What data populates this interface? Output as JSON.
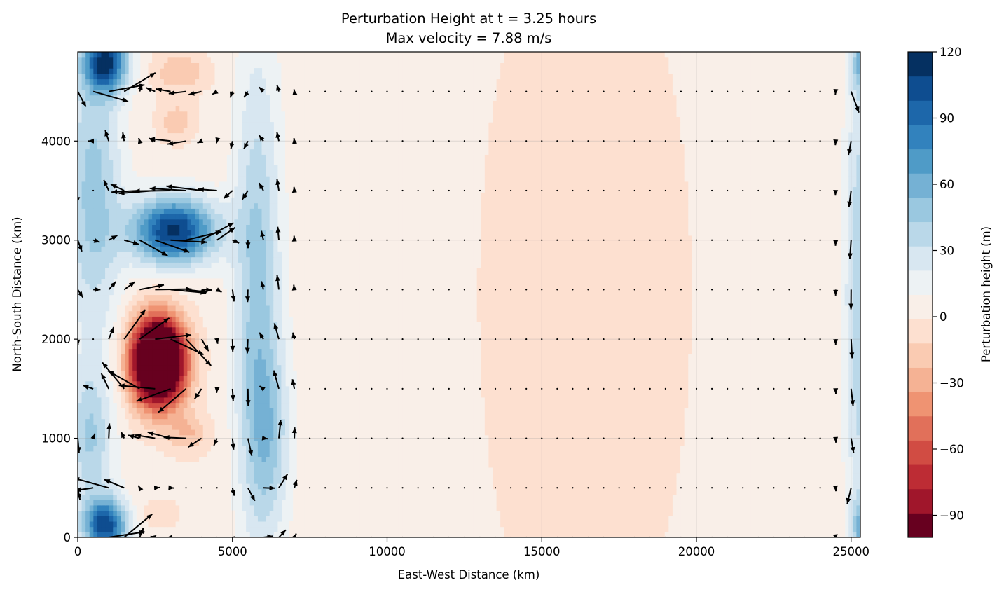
{
  "chart_data": {
    "type": "heatmap",
    "title": "Perturbation Height at t = 3.25 hours",
    "subtitle": "Max velocity = 7.88 m/s",
    "xlabel": "East-West Distance (km)",
    "ylabel": "North-South Distance (km)",
    "xlim": [
      0,
      25300
    ],
    "ylim": [
      0,
      4900
    ],
    "x_ticks": [
      0,
      5000,
      10000,
      15000,
      20000,
      25000
    ],
    "y_ticks": [
      0,
      1000,
      2000,
      3000,
      4000
    ],
    "grid": true,
    "colorbar": {
      "label": "Perturbation height (m)",
      "range": [
        -100,
        120
      ],
      "tick_values": [
        -90,
        -60,
        -30,
        0,
        30,
        60,
        90,
        120
      ],
      "tick_labels": [
        "−90",
        "−60",
        "−30",
        "0",
        "30",
        "60",
        "90",
        "120"
      ],
      "colors": [
        "#67001f",
        "#a0162b",
        "#bd2c34",
        "#d14c43",
        "#e1705a",
        "#ef9372",
        "#f5b294",
        "#facbb2",
        "#fde0d0",
        "#f9efe8",
        "#edf2f4",
        "#d8e7f1",
        "#bad8e9",
        "#9ac8e0",
        "#75b1d4",
        "#4f9bc7",
        "#3282bd",
        "#1d67aa",
        "#0e4d90",
        "#053061"
      ]
    },
    "colormap": "RdBu_r",
    "field_features": [
      {
        "kind": "high",
        "x": 3100,
        "y": 3100,
        "value": 110
      },
      {
        "kind": "high",
        "x": 900,
        "y": 4750,
        "value": 105
      },
      {
        "kind": "high",
        "x": 900,
        "y": 150,
        "value": 105
      },
      {
        "kind": "low",
        "x": 2600,
        "y": 1780,
        "value": -95
      },
      {
        "kind": "low",
        "x": 3300,
        "y": 4700,
        "value": -20
      },
      {
        "kind": "low",
        "x": 3600,
        "y": 1050,
        "value": -20
      },
      {
        "kind": "band",
        "x": 5800,
        "value": 45
      },
      {
        "kind": "band",
        "x": 16400,
        "value": -3
      },
      {
        "kind": "edge",
        "x": 25200,
        "value": 60
      }
    ],
    "quiver": {
      "rows_y": [
        0,
        500,
        1000,
        1500,
        2000,
        2500,
        3000,
        3500,
        4000,
        4500
      ],
      "x_spacing_km": 500,
      "max_velocity_ms": 7.88
    }
  }
}
